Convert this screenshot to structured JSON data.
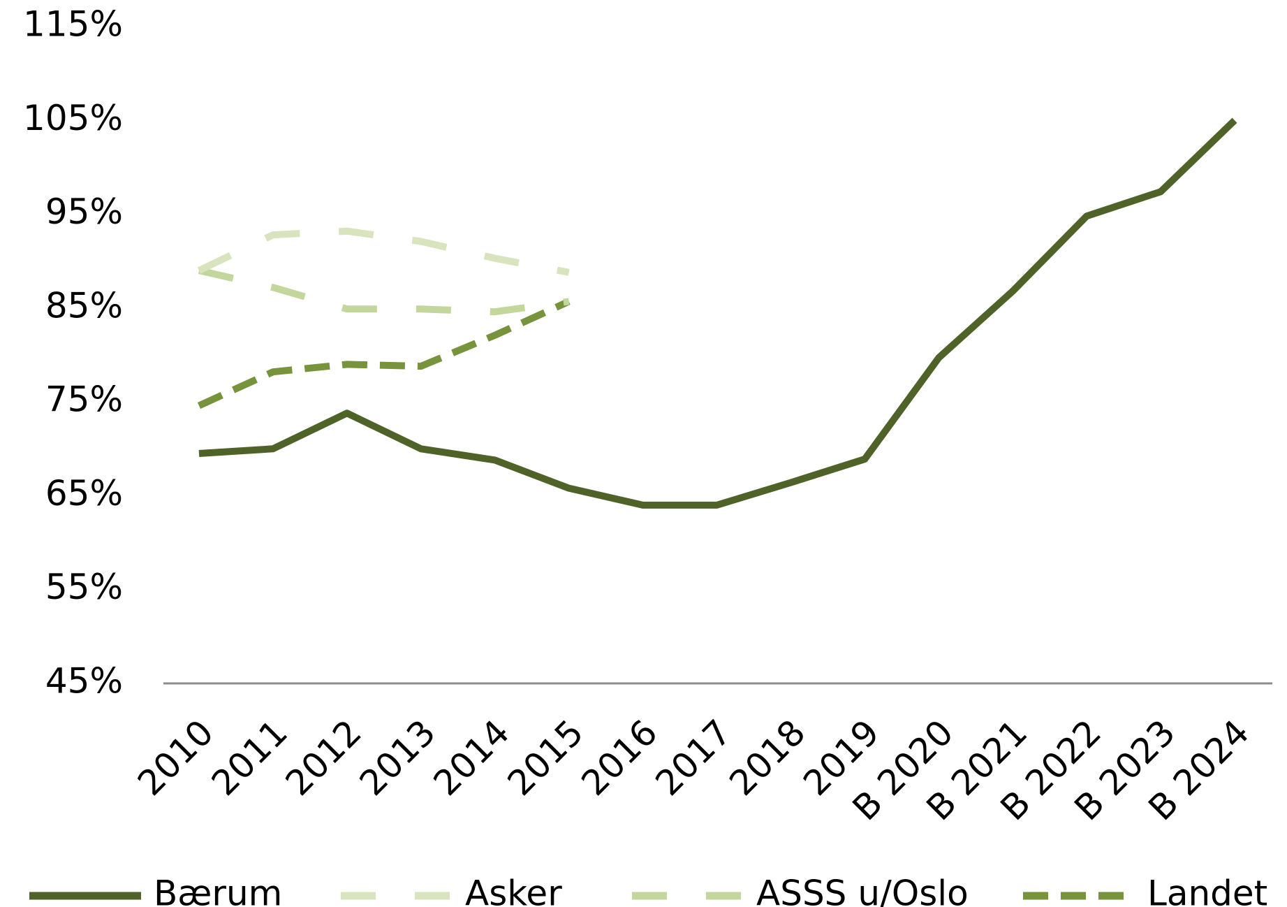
{
  "chart_data": {
    "type": "line",
    "categories": [
      "2010",
      "2011",
      "2012",
      "2013",
      "2014",
      "2015",
      "2016",
      "2017",
      "2018",
      "2019",
      "B 2020",
      "B 2021",
      "B 2022",
      "B 2023",
      "B 2024"
    ],
    "series": [
      {
        "name": "Bærum",
        "color": "#4f6228",
        "line_style": "solid",
        "values": [
          69.5,
          70.0,
          73.8,
          70.0,
          68.8,
          65.8,
          64.0,
          64.0,
          66.4,
          68.9,
          79.7,
          86.8,
          94.8,
          97.4,
          105.0
        ]
      },
      {
        "name": "Asker",
        "color": "#d7e4bd",
        "line_style": "long-dash",
        "values": [
          89.0,
          92.8,
          93.2,
          92.1,
          90.3,
          88.8,
          null,
          null,
          null,
          null,
          null,
          null,
          null,
          null,
          null
        ]
      },
      {
        "name": "ASSS u/Oslo",
        "color": "#c3d69b",
        "line_style": "long-dash",
        "values": [
          89.0,
          87.2,
          84.9,
          84.9,
          84.6,
          85.7,
          null,
          null,
          null,
          null,
          null,
          null,
          null,
          null,
          null
        ]
      },
      {
        "name": "Landet",
        "color": "#77933c",
        "line_style": "dash",
        "values": [
          74.6,
          78.2,
          79.0,
          78.8,
          82.1,
          85.7,
          null,
          null,
          null,
          null,
          null,
          null,
          null,
          null,
          null
        ]
      }
    ],
    "ylim": [
      45,
      115
    ],
    "yticks": [
      {
        "value": 45,
        "label": "45%"
      },
      {
        "value": 55,
        "label": "55%"
      },
      {
        "value": 65,
        "label": "65%"
      },
      {
        "value": 75,
        "label": "75%"
      },
      {
        "value": 85,
        "label": "85%"
      },
      {
        "value": 95,
        "label": "95%"
      },
      {
        "value": 105,
        "label": "105%"
      },
      {
        "value": 115,
        "label": "115%"
      }
    ],
    "grid": false,
    "legend": "bottom"
  }
}
